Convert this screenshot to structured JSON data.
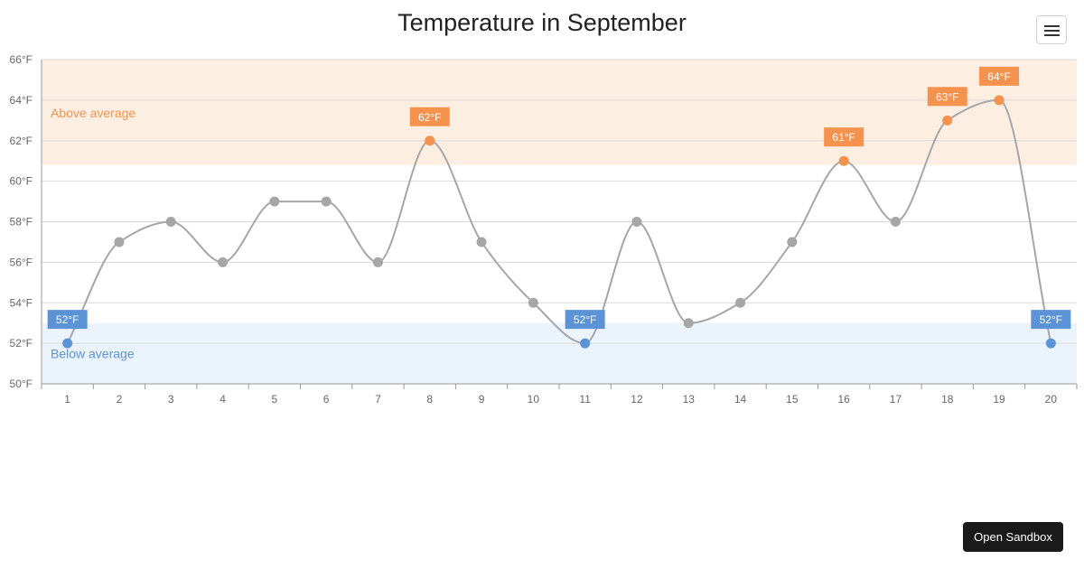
{
  "chart_data": {
    "type": "line",
    "title": "Temperature in September",
    "x": [
      1,
      2,
      3,
      4,
      5,
      6,
      7,
      8,
      9,
      10,
      11,
      12,
      13,
      14,
      15,
      16,
      17,
      18,
      19,
      20
    ],
    "series": [
      {
        "values": [
          52,
          57,
          58,
          56,
          59,
          59,
          56,
          62,
          57,
          54,
          52,
          58,
          53,
          54,
          57,
          61,
          58,
          63,
          64,
          52
        ]
      }
    ],
    "ylim": [
      50,
      66
    ],
    "y_ticks": [
      50,
      52,
      54,
      56,
      58,
      60,
      62,
      64,
      66
    ],
    "y_unit": "°F",
    "grid": true,
    "bands": [
      {
        "label": "Above average",
        "from": 60.8,
        "to": 66,
        "color": "#fdeee2",
        "label_color": "#f5924d"
      },
      {
        "label": "Below average",
        "from": 50,
        "to": 53,
        "color": "#ebf3fc",
        "label_color": "#5b93d6"
      }
    ],
    "highlight": {
      "above_threshold": 60.8,
      "below_threshold": 53,
      "above_color": "#f5924d",
      "below_color": "#5b93d6",
      "normal_color": "#a6a6a6"
    },
    "line_color": "#a6a6a6"
  },
  "ui": {
    "menu_label": "",
    "sandbox_label": "Open Sandbox"
  }
}
